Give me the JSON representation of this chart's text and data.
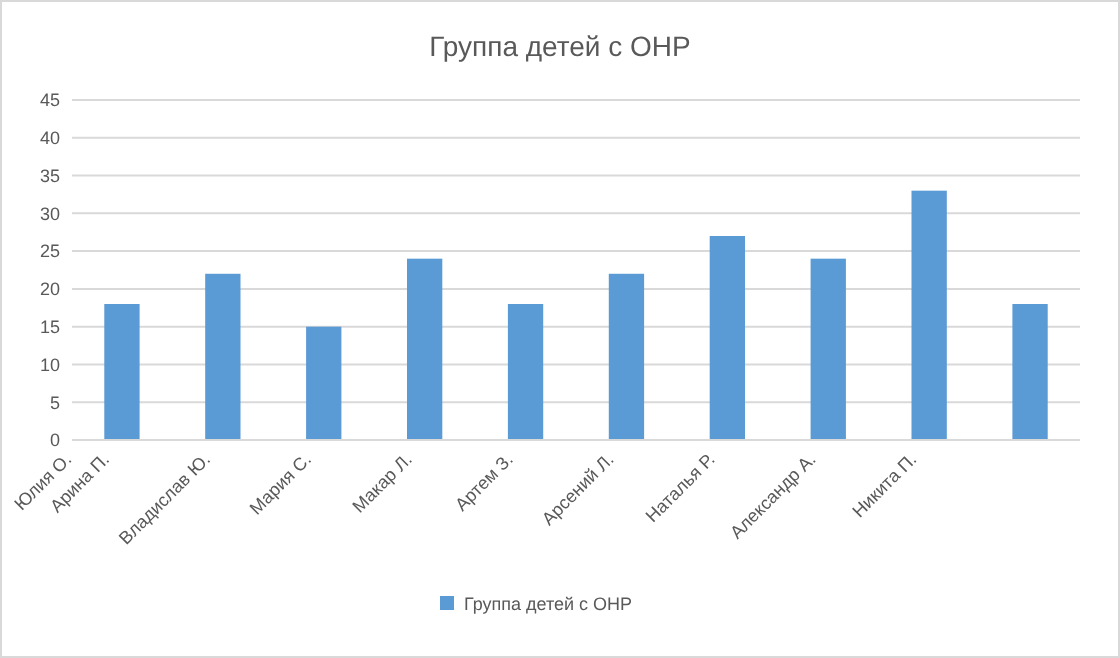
{
  "chart_data": {
    "type": "bar",
    "title": "Группа детей с ОНР",
    "categories": [
      "Арина П.",
      "Владислав Ю.",
      "Мария С.",
      "Макар Л.",
      "Артем З.",
      "Арсений Л.",
      "Наталья Р.",
      "Александр А.",
      "Никита П.",
      null
    ],
    "series": [
      {
        "name": "Группа детей с ОНР",
        "color": "#5b9bd5",
        "values": [
          18,
          22,
          15,
          24,
          18,
          22,
          27,
          24,
          33,
          18
        ]
      }
    ],
    "ylim": [
      0,
      45
    ],
    "yticks": [
      0,
      5,
      10,
      15,
      20,
      25,
      30,
      35,
      40,
      45
    ],
    "grid": "y",
    "legend": "bottom",
    "annotations": [
      "Юлия О."
    ]
  }
}
